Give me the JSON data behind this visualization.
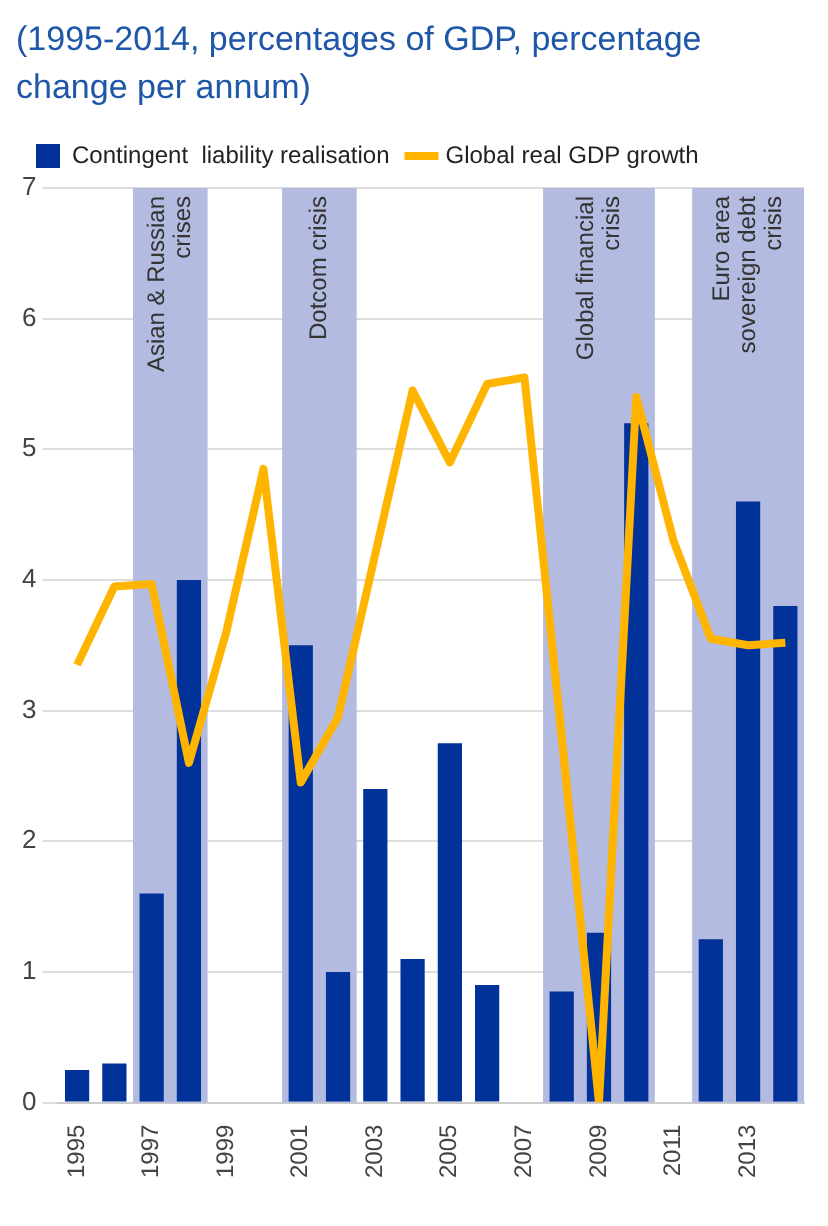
{
  "chart_data": {
    "type": "bar",
    "title": "(1995-2014, percentages of GDP, percentage change per annum)",
    "x": [
      1995,
      1996,
      1997,
      1998,
      1999,
      2000,
      2001,
      2002,
      2003,
      2004,
      2005,
      2006,
      2007,
      2008,
      2009,
      2010,
      2011,
      2012,
      2013,
      2014
    ],
    "series": [
      {
        "name": "Contingent  liability realisation",
        "color": "#003299",
        "values": [
          0.25,
          0.3,
          1.6,
          4.0,
          0,
          0,
          3.5,
          1.0,
          2.4,
          1.1,
          2.75,
          0.9,
          0,
          0.85,
          1.3,
          5.2,
          0,
          1.25,
          4.6,
          3.8
        ]
      },
      {
        "name": "Global real GDP growth",
        "type": "line",
        "color": "#ffb400",
        "values": [
          3.35,
          3.95,
          3.97,
          2.6,
          3.6,
          4.85,
          2.45,
          2.95,
          4.2,
          5.45,
          4.9,
          5.5,
          5.55,
          2.8,
          0,
          5.4,
          4.3,
          3.55,
          3.5,
          3.52
        ]
      }
    ],
    "xlim": [
      1994.5,
      2014.5
    ],
    "xticks": [
      1995,
      1997,
      1999,
      2001,
      2003,
      2005,
      2007,
      2009,
      2011,
      2013
    ],
    "ylim": [
      0,
      7
    ],
    "yticks": [
      0,
      1,
      2,
      3,
      4,
      5,
      6,
      7
    ],
    "bands": [
      {
        "axis": "x",
        "from": 1996.5,
        "to": 1998.5,
        "label": "Asian & Russian crises",
        "color": "#b3bbe0"
      },
      {
        "axis": "x",
        "from": 2000.5,
        "to": 2002.5,
        "label": "Dotcom crisis",
        "color": "#b3bbe0"
      },
      {
        "axis": "x",
        "from": 2007.5,
        "to": 2010.5,
        "label": "Global financial crisis",
        "color": "#b3bbe0"
      },
      {
        "axis": "x",
        "from": 2011.5,
        "to": 2014.5,
        "label": "Euro area sovereign debt crisis",
        "color": "#b3bbe0"
      }
    ],
    "grid": "y",
    "legend": "top left"
  }
}
